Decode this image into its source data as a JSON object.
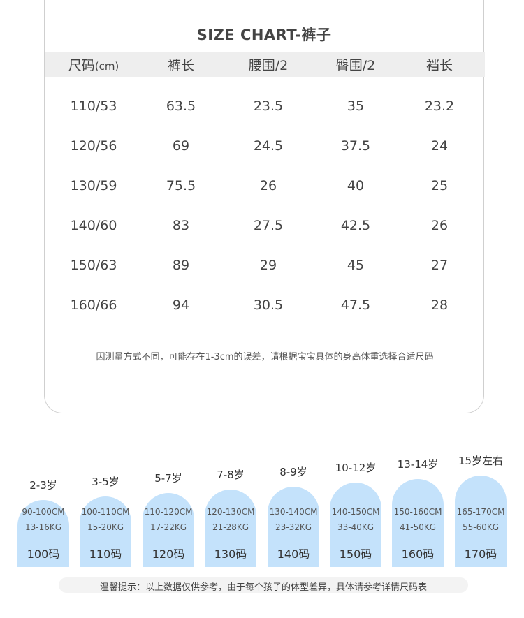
{
  "title": "SIZE CHART-裤子",
  "table": {
    "headers": [
      "尺码",
      "(cm)",
      "裤长",
      "腰围/2",
      "臀围/2",
      "裆长"
    ],
    "rows": [
      [
        "110/53",
        "63.5",
        "23.5",
        "35",
        "23.2"
      ],
      [
        "120/56",
        "69",
        "24.5",
        "37.5",
        "24"
      ],
      [
        "130/59",
        "75.5",
        "26",
        "40",
        "25"
      ],
      [
        "140/60",
        "83",
        "27.5",
        "42.5",
        "26"
      ],
      [
        "150/63",
        "89",
        "29",
        "45",
        "27"
      ],
      [
        "160/66",
        "94",
        "30.5",
        "47.5",
        "28"
      ]
    ]
  },
  "note": "因测量方式不同，可能存在1-3cm的误差，请根据宝宝具体的身高体重选择合适尺码",
  "size_guide": [
    {
      "age": "2-3岁",
      "height": "90-100CM",
      "weight": "13-16KG",
      "size": "100码"
    },
    {
      "age": "3-5岁",
      "height": "100-110CM",
      "weight": "15-20KG",
      "size": "110码"
    },
    {
      "age": "5-7岁",
      "height": "110-120CM",
      "weight": "17-22KG",
      "size": "120码"
    },
    {
      "age": "7-8岁",
      "height": "120-130CM",
      "weight": "21-28KG",
      "size": "130码"
    },
    {
      "age": "8-9岁",
      "height": "130-140CM",
      "weight": "23-32KG",
      "size": "140码"
    },
    {
      "age": "10-12岁",
      "height": "140-150CM",
      "weight": "33-40KG",
      "size": "150码"
    },
    {
      "age": "13-14岁",
      "height": "150-160CM",
      "weight": "41-50KG",
      "size": "160码"
    },
    {
      "age": "15岁左右",
      "height": "165-170CM",
      "weight": "55-60KG",
      "size": "170码"
    }
  ],
  "tip": "温馨提示：以上数据仅供参考，由于每个孩子的体型差异，具体请参考详情尺码表",
  "colors": {
    "pill": "#c4e2fb",
    "header_bg": "#eeeeee"
  }
}
